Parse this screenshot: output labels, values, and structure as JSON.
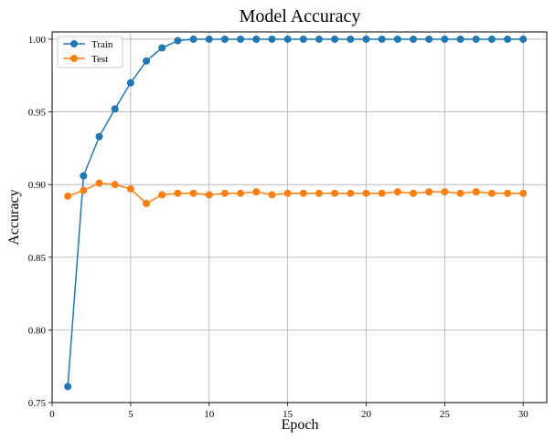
{
  "chart_data": {
    "type": "line",
    "title": "Model Accuracy",
    "xlabel": "Epoch",
    "ylabel": "Accuracy",
    "xlim": [
      0,
      31.5
    ],
    "ylim": [
      0.75,
      1.005
    ],
    "xticks": [
      0,
      5,
      10,
      15,
      20,
      25,
      30
    ],
    "yticks": [
      0.75,
      0.8,
      0.85,
      0.9,
      0.95,
      1.0
    ],
    "ytick_labels": [
      "0.75",
      "0.80",
      "0.85",
      "0.90",
      "0.95",
      "1.00"
    ],
    "grid": true,
    "legend": "upper-left",
    "x": [
      1,
      2,
      3,
      4,
      5,
      6,
      7,
      8,
      9,
      10,
      11,
      12,
      13,
      14,
      15,
      16,
      17,
      18,
      19,
      20,
      21,
      22,
      23,
      24,
      25,
      26,
      27,
      28,
      29,
      30
    ],
    "series": [
      {
        "name": "Train",
        "color": "#1f77b4",
        "marker": "circle",
        "values": [
          0.761,
          0.906,
          0.933,
          0.952,
          0.97,
          0.985,
          0.994,
          0.999,
          1.0,
          1.0,
          1.0,
          1.0,
          1.0,
          1.0,
          1.0,
          1.0,
          1.0,
          1.0,
          1.0,
          1.0,
          1.0,
          1.0,
          1.0,
          1.0,
          1.0,
          1.0,
          1.0,
          1.0,
          1.0,
          1.0
        ]
      },
      {
        "name": "Test",
        "color": "#ff7f0e",
        "marker": "circle",
        "values": [
          0.892,
          0.896,
          0.901,
          0.9,
          0.897,
          0.887,
          0.893,
          0.894,
          0.894,
          0.893,
          0.894,
          0.894,
          0.895,
          0.893,
          0.894,
          0.894,
          0.894,
          0.894,
          0.894,
          0.894,
          0.894,
          0.895,
          0.894,
          0.895,
          0.895,
          0.894,
          0.895,
          0.894,
          0.894,
          0.894
        ]
      }
    ]
  }
}
